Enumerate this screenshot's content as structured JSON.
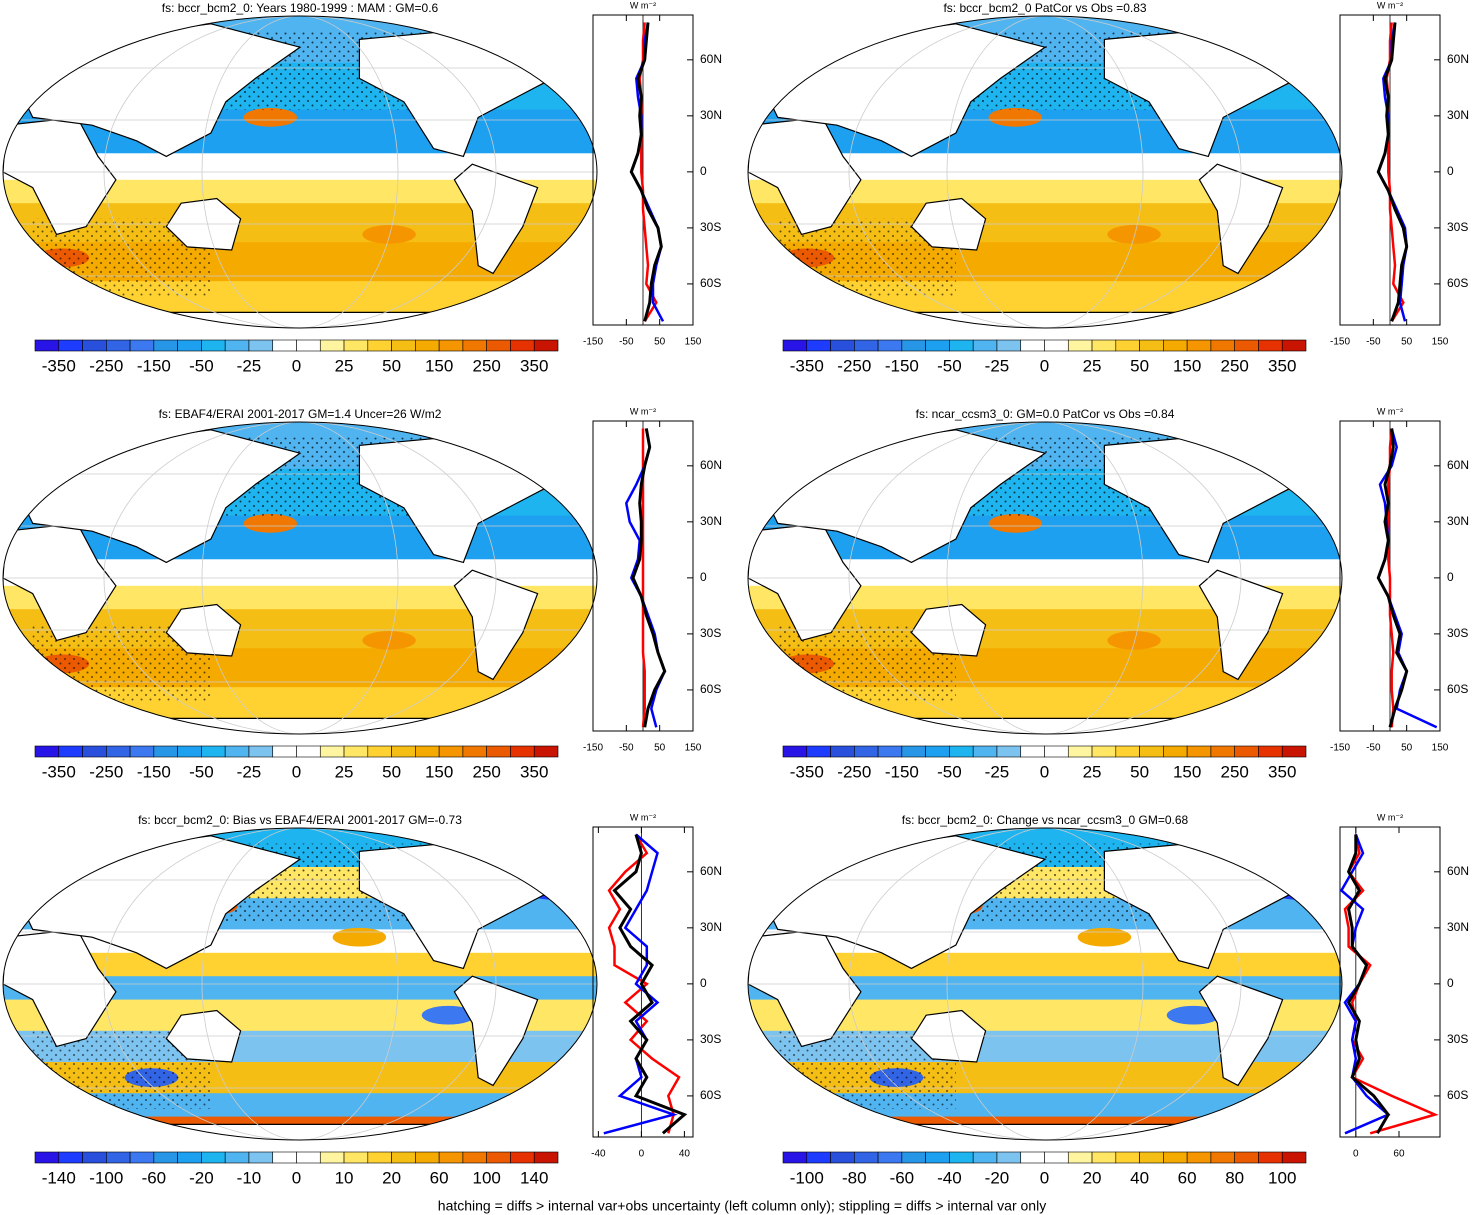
{
  "chart_data": [
    {
      "type": "map",
      "title": "fs: bccr_bcm2_0: Years 1980-1999 : MAM : GM=0.6",
      "colorbar_ticks": [
        -350,
        -250,
        -150,
        -50,
        -25,
        0,
        25,
        50,
        150,
        250,
        350
      ],
      "colors": [
        "#2814e6",
        "#1e3cff",
        "#2850dc",
        "#3264e6",
        "#3c78f0",
        "#2896e6",
        "#1ea0f0",
        "#1eb4f0",
        "#50b4f0",
        "#7dc3f0",
        "#ffffff",
        "#ffffff",
        "#fff5a0",
        "#ffe664",
        "#ffd232",
        "#f5be14",
        "#f5aa00",
        "#f59600",
        "#f07800",
        "#eb5a00",
        "#e63200",
        "#c81400"
      ]
    },
    {
      "type": "line",
      "unit_label": "W m⁻²",
      "xlim": [
        -150,
        150
      ],
      "xticks": [
        -150,
        -50,
        50,
        150
      ],
      "ylim": [
        -82,
        84
      ],
      "yticks": [
        {
          "value": 60,
          "label": "60N"
        },
        {
          "value": 30,
          "label": "30N"
        },
        0,
        {
          "value": -30,
          "label": "30S"
        },
        {
          "value": -60,
          "label": "60S"
        }
      ],
      "y": [
        -80,
        -70,
        -60,
        -50,
        -40,
        -30,
        -20,
        -10,
        0,
        10,
        20,
        30,
        40,
        50,
        60,
        70,
        80
      ],
      "series": [
        {
          "color": "#ff0000",
          "values": [
            5,
            40,
            10,
            15,
            10,
            5,
            0,
            0,
            -5,
            -5,
            -5,
            -5,
            -5,
            -10,
            0,
            0,
            5
          ]
        },
        {
          "color": "#0000ff",
          "values": [
            60,
            30,
            30,
            40,
            55,
            45,
            20,
            -5,
            -35,
            -15,
            -5,
            -5,
            -15,
            -20,
            5,
            5,
            15
          ]
        },
        {
          "color": "#000000",
          "values": [
            5,
            20,
            25,
            35,
            55,
            45,
            15,
            -5,
            -35,
            -15,
            -5,
            -10,
            -5,
            -15,
            5,
            10,
            15
          ]
        }
      ]
    },
    {
      "type": "map",
      "title": "fs: bccr_bcm2_0 PatCor vs Obs =0.83",
      "colorbar_ticks": [
        -350,
        -250,
        -150,
        -50,
        -25,
        0,
        25,
        50,
        150,
        250,
        350
      ],
      "colors": [
        "#2814e6",
        "#1e3cff",
        "#2850dc",
        "#3264e6",
        "#3c78f0",
        "#2896e6",
        "#1ea0f0",
        "#1eb4f0",
        "#50b4f0",
        "#7dc3f0",
        "#ffffff",
        "#ffffff",
        "#fff5a0",
        "#ffe664",
        "#ffd232",
        "#f5be14",
        "#f5aa00",
        "#f59600",
        "#f07800",
        "#eb5a00",
        "#e63200",
        "#c81400"
      ]
    },
    {
      "type": "line",
      "unit_label": "W m⁻²",
      "xlim": [
        -150,
        150
      ],
      "xticks": [
        -150,
        -50,
        50,
        150
      ],
      "ylim": [
        -82,
        84
      ],
      "yticks": [
        {
          "value": 60,
          "label": "60N"
        },
        {
          "value": 30,
          "label": "30N"
        },
        0,
        {
          "value": -30,
          "label": "30S"
        },
        {
          "value": -60,
          "label": "60S"
        }
      ],
      "y": [
        -80,
        -70,
        -60,
        -50,
        -40,
        -30,
        -20,
        -10,
        0,
        10,
        20,
        30,
        40,
        50,
        60,
        70,
        80
      ],
      "series": [
        {
          "color": "#ff0000",
          "values": [
            5,
            40,
            10,
            15,
            10,
            5,
            0,
            0,
            -5,
            -5,
            -5,
            -5,
            -5,
            -10,
            0,
            0,
            5
          ]
        },
        {
          "color": "#0000ff",
          "values": [
            45,
            30,
            35,
            40,
            50,
            45,
            20,
            -5,
            -35,
            -15,
            -5,
            -5,
            -15,
            -20,
            5,
            5,
            15
          ]
        },
        {
          "color": "#000000",
          "values": [
            5,
            25,
            30,
            35,
            50,
            40,
            15,
            -5,
            -35,
            -15,
            -5,
            -10,
            -5,
            -15,
            5,
            10,
            15
          ]
        }
      ]
    },
    {
      "type": "map",
      "title": "fs: EBAF4/ERAI 2001-2017 GM=1.4 Uncer=26 W/m2",
      "colorbar_ticks": [
        -350,
        -250,
        -150,
        -50,
        -25,
        0,
        25,
        50,
        150,
        250,
        350
      ],
      "colors": [
        "#2814e6",
        "#1e3cff",
        "#2850dc",
        "#3264e6",
        "#3c78f0",
        "#2896e6",
        "#1ea0f0",
        "#1eb4f0",
        "#50b4f0",
        "#7dc3f0",
        "#ffffff",
        "#ffffff",
        "#fff5a0",
        "#ffe664",
        "#ffd232",
        "#f5be14",
        "#f5aa00",
        "#f59600",
        "#f07800",
        "#eb5a00",
        "#e63200",
        "#c81400"
      ]
    },
    {
      "type": "line",
      "unit_label": "W m⁻²",
      "xlim": [
        -150,
        150
      ],
      "xticks": [
        -150,
        -50,
        50,
        150
      ],
      "ylim": [
        -82,
        84
      ],
      "yticks": [
        {
          "value": 60,
          "label": "60N"
        },
        {
          "value": 30,
          "label": "30N"
        },
        0,
        {
          "value": -30,
          "label": "30S"
        },
        {
          "value": -60,
          "label": "60S"
        }
      ],
      "y": [
        -80,
        -70,
        -60,
        -50,
        -40,
        -30,
        -20,
        -10,
        0,
        10,
        20,
        30,
        40,
        50,
        60,
        70,
        80
      ],
      "series": [
        {
          "color": "#ff0000",
          "values": [
            0,
            5,
            5,
            5,
            0,
            0,
            0,
            0,
            0,
            0,
            0,
            0,
            0,
            0,
            0,
            0,
            0
          ]
        },
        {
          "color": "#0000ff",
          "values": [
            40,
            25,
            40,
            65,
            45,
            35,
            15,
            -5,
            -35,
            -15,
            -10,
            -40,
            -50,
            -20,
            5,
            20,
            10
          ]
        },
        {
          "color": "#000000",
          "values": [
            5,
            15,
            35,
            65,
            45,
            30,
            10,
            -5,
            -30,
            -10,
            -5,
            -5,
            -10,
            -5,
            5,
            20,
            10
          ]
        }
      ]
    },
    {
      "type": "map",
      "title": "fs: ncar_ccsm3_0: GM=0.0 PatCor vs Obs =0.84",
      "colorbar_ticks": [
        -350,
        -250,
        -150,
        -50,
        -25,
        0,
        25,
        50,
        150,
        250,
        350
      ],
      "colors": [
        "#2814e6",
        "#1e3cff",
        "#2850dc",
        "#3264e6",
        "#3c78f0",
        "#2896e6",
        "#1ea0f0",
        "#1eb4f0",
        "#50b4f0",
        "#7dc3f0",
        "#ffffff",
        "#ffffff",
        "#fff5a0",
        "#ffe664",
        "#ffd232",
        "#f5be14",
        "#f5aa00",
        "#f59600",
        "#f07800",
        "#eb5a00",
        "#e63200",
        "#c81400"
      ]
    },
    {
      "type": "line",
      "unit_label": "W m⁻²",
      "xlim": [
        -150,
        150
      ],
      "xticks": [
        -150,
        -50,
        50,
        150
      ],
      "ylim": [
        -82,
        84
      ],
      "yticks": [
        {
          "value": 60,
          "label": "60N"
        },
        {
          "value": 30,
          "label": "30N"
        },
        0,
        {
          "value": -30,
          "label": "30S"
        },
        {
          "value": -60,
          "label": "60S"
        }
      ],
      "y": [
        -80,
        -70,
        -60,
        -50,
        -40,
        -30,
        -20,
        -10,
        0,
        10,
        20,
        30,
        40,
        50,
        60,
        70,
        80
      ],
      "series": [
        {
          "color": "#ff0000",
          "values": [
            5,
            10,
            5,
            5,
            10,
            5,
            0,
            0,
            0,
            -5,
            -5,
            -5,
            -5,
            -5,
            0,
            0,
            5
          ]
        },
        {
          "color": "#0000ff",
          "values": [
            140,
            20,
            30,
            50,
            25,
            35,
            15,
            -5,
            -35,
            -15,
            -5,
            -10,
            -15,
            -30,
            5,
            20,
            5
          ]
        },
        {
          "color": "#000000",
          "values": [
            0,
            15,
            35,
            50,
            20,
            30,
            10,
            -5,
            -35,
            -15,
            -5,
            -15,
            -5,
            -15,
            0,
            10,
            5
          ]
        }
      ]
    },
    {
      "type": "map",
      "title": "fs: bccr_bcm2_0: Bias vs EBAF4/ERAI 2001-2017 GM=-0.73",
      "colorbar_ticks": [
        -140,
        -100,
        -60,
        -20,
        -10,
        0,
        10,
        20,
        60,
        100,
        140
      ],
      "colors": [
        "#2814e6",
        "#1e3cff",
        "#2850dc",
        "#3264e6",
        "#3c78f0",
        "#2896e6",
        "#1ea0f0",
        "#1eb4f0",
        "#50b4f0",
        "#7dc3f0",
        "#ffffff",
        "#ffffff",
        "#fff5a0",
        "#ffe664",
        "#ffd232",
        "#f5be14",
        "#f5aa00",
        "#f59600",
        "#f07800",
        "#eb5a00",
        "#e63200",
        "#c81400"
      ]
    },
    {
      "type": "line",
      "unit_label": "W m⁻²",
      "xlim": [
        -45,
        48
      ],
      "xticks": [
        -40,
        0,
        40
      ],
      "ylim": [
        -82,
        84
      ],
      "yticks": [
        {
          "value": 60,
          "label": "60N"
        },
        {
          "value": 30,
          "label": "30N"
        },
        0,
        {
          "value": -30,
          "label": "30S"
        },
        {
          "value": -60,
          "label": "60S"
        }
      ],
      "y": [
        -80,
        -70,
        -60,
        -50,
        -40,
        -30,
        -20,
        -10,
        0,
        10,
        20,
        30,
        40,
        50,
        60,
        70,
        80
      ],
      "series": [
        {
          "color": "#ff0000",
          "values": [
            25,
            30,
            25,
            35,
            10,
            -10,
            5,
            -15,
            5,
            -25,
            -25,
            -30,
            -20,
            -30,
            -15,
            5,
            -5
          ]
        },
        {
          "color": "#0000ff",
          "values": [
            -35,
            30,
            -20,
            0,
            -5,
            5,
            -5,
            15,
            -5,
            5,
            5,
            -15,
            -5,
            5,
            10,
            15,
            -5
          ]
        },
        {
          "color": "#000000",
          "values": [
            20,
            40,
            -5,
            5,
            -5,
            5,
            -10,
            10,
            0,
            10,
            -10,
            -20,
            -10,
            -25,
            -5,
            0,
            -5
          ]
        }
      ]
    },
    {
      "type": "map",
      "title": "fs: bccr_bcm2_0: Change vs ncar_ccsm3_0 GM=0.68",
      "colorbar_ticks": [
        -100,
        -80,
        -60,
        -40,
        -20,
        0,
        20,
        40,
        60,
        80,
        100
      ],
      "colors": [
        "#2814e6",
        "#1e3cff",
        "#2850dc",
        "#3264e6",
        "#3c78f0",
        "#2896e6",
        "#1ea0f0",
        "#1eb4f0",
        "#50b4f0",
        "#7dc3f0",
        "#ffffff",
        "#ffffff",
        "#fff5a0",
        "#ffe664",
        "#ffd232",
        "#f5be14",
        "#f5aa00",
        "#f59600",
        "#f07800",
        "#eb5a00",
        "#e63200",
        "#c81400"
      ]
    },
    {
      "type": "line",
      "unit_label": "W m⁻²",
      "xlim": [
        -22,
        117
      ],
      "xticks": [
        0,
        60
      ],
      "ylim": [
        -82,
        84
      ],
      "yticks": [
        {
          "value": 60,
          "label": "60N"
        },
        {
          "value": 30,
          "label": "30N"
        },
        0,
        {
          "value": -30,
          "label": "30S"
        },
        {
          "value": -60,
          "label": "60S"
        }
      ],
      "y": [
        -80,
        -70,
        -60,
        -50,
        -40,
        -30,
        -20,
        -10,
        0,
        10,
        20,
        30,
        40,
        50,
        60,
        70,
        80
      ],
      "series": [
        {
          "color": "#ff0000",
          "values": [
            20,
            110,
            50,
            -5,
            10,
            -5,
            0,
            -5,
            5,
            20,
            -10,
            -10,
            -15,
            10,
            -10,
            5,
            0
          ]
        },
        {
          "color": "#0000ff",
          "values": [
            -15,
            45,
            15,
            -5,
            0,
            -5,
            0,
            -15,
            5,
            15,
            -5,
            0,
            10,
            -20,
            -5,
            10,
            0
          ]
        },
        {
          "color": "#000000",
          "values": [
            30,
            45,
            25,
            -5,
            5,
            0,
            5,
            -10,
            5,
            15,
            -5,
            -5,
            -10,
            5,
            -10,
            0,
            0
          ]
        }
      ]
    }
  ],
  "footnote": "hatching = diffs > internal var+obs uncertainty (left column only); stippling = diffs > internal var only"
}
